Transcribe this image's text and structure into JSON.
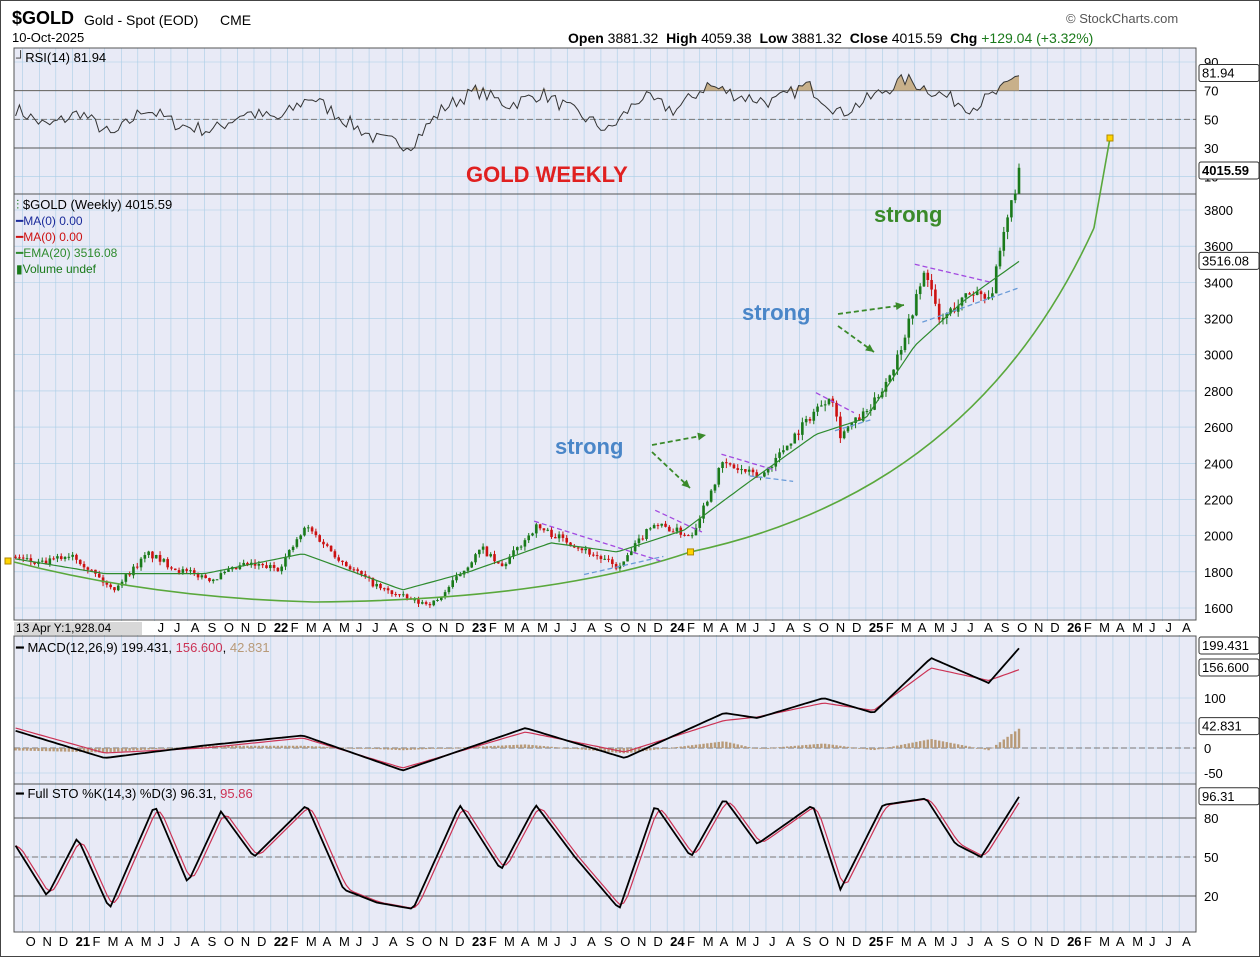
{
  "header": {
    "symbol": "$GOLD",
    "name": "Gold - Spot (EOD)",
    "exchange": "CME",
    "date": "10-Oct-2025",
    "brand": "StockCharts.com",
    "ohlc": {
      "open_label": "Open",
      "open": "3881.32",
      "high_label": "High",
      "high": "4059.38",
      "low_label": "Low",
      "low": "3881.32",
      "close_label": "Close",
      "close": "4015.59",
      "chg_label": "Chg",
      "chg": "+129.04 (+3.32%)"
    }
  },
  "colors": {
    "panel_bg": "#e8eaf6",
    "grid": "#a9cde6",
    "up": "#1a7a1a",
    "down": "#cc1111",
    "ema": "#2e8b2e",
    "curve": "#5aa83c",
    "magenta": "#a349e0",
    "trend_blue": "#6a9bd8",
    "strong_blue": "#4a86c8",
    "strong_green": "#3a8a2a",
    "title_red": "#e02020",
    "rsi_fill": "#c8b08a",
    "macd_hist": "#b89a78",
    "sig_red": "#cc3355"
  },
  "annotations": {
    "chart_title": "GOLD WEEKLY",
    "strong_1": "strong",
    "strong_2": "strong",
    "strong_3": "strong"
  },
  "chart_data": [
    {
      "type": "line",
      "title": "RSI(14) 81.94",
      "indicator": "RSI(14)",
      "value": 81.94,
      "value_label": "81.94",
      "ylim": [
        0,
        100
      ],
      "yticks": [
        10,
        30,
        50,
        70,
        90
      ],
      "reference_lines": [
        30,
        50,
        70
      ],
      "points": [
        [
          "2020-09-15",
          58
        ],
        [
          "2020-11-15",
          45
        ],
        [
          "2021-01-15",
          55
        ],
        [
          "2021-03-15",
          38
        ],
        [
          "2021-05-15",
          58
        ],
        [
          "2021-07-15",
          46
        ],
        [
          "2021-09-15",
          42
        ],
        [
          "2021-11-15",
          55
        ],
        [
          "2022-01-15",
          50
        ],
        [
          "2022-03-15",
          66
        ],
        [
          "2022-05-15",
          50
        ],
        [
          "2022-07-15",
          36
        ],
        [
          "2022-09-15",
          32
        ],
        [
          "2022-11-15",
          58
        ],
        [
          "2023-01-15",
          70
        ],
        [
          "2023-03-15",
          60
        ],
        [
          "2023-05-15",
          68
        ],
        [
          "2023-07-15",
          55
        ],
        [
          "2023-09-15",
          42
        ],
        [
          "2023-11-15",
          66
        ],
        [
          "2024-01-15",
          56
        ],
        [
          "2024-03-15",
          74
        ],
        [
          "2024-05-15",
          66
        ],
        [
          "2024-07-15",
          62
        ],
        [
          "2024-09-15",
          74
        ],
        [
          "2024-11-15",
          54
        ],
        [
          "2025-01-15",
          66
        ],
        [
          "2025-03-15",
          78
        ],
        [
          "2025-05-15",
          68
        ],
        [
          "2025-07-15",
          58
        ],
        [
          "2025-09-15",
          72
        ],
        [
          "2025-10-10",
          81.94
        ]
      ]
    },
    {
      "type": "candlestick",
      "title": "$GOLD (Weekly) 4015.59",
      "ylim": [
        1550,
        4110
      ],
      "yticks": [
        1600,
        1800,
        2000,
        2200,
        2400,
        2600,
        2800,
        3000,
        3200,
        3400,
        3600,
        3800
      ],
      "last_price_label": "4015.59",
      "ema_label": "3516.08",
      "legend": [
        {
          "name": "$GOLD (Weekly) 4015.59",
          "color": "#1a7a1a"
        },
        {
          "name": "MA(0) 0.00",
          "color": "#1a2a9a"
        },
        {
          "name": "MA(0) 0.00",
          "color": "#cc1111"
        },
        {
          "name": "EMA(20) 3516.08",
          "color": "#2e8b2e"
        },
        {
          "name": "Volume undef",
          "color": "#1a7a1a"
        }
      ],
      "price_path": [
        [
          "2020-09-01",
          1900
        ],
        [
          "2020-11-01",
          1840
        ],
        [
          "2021-01-01",
          1900
        ],
        [
          "2021-03-15",
          1700
        ],
        [
          "2021-05-20",
          1900
        ],
        [
          "2021-07-15",
          1810
        ],
        [
          "2021-09-15",
          1760
        ],
        [
          "2021-11-15",
          1840
        ],
        [
          "2022-01-15",
          1820
        ],
        [
          "2022-03-08",
          2050
        ],
        [
          "2022-05-15",
          1850
        ],
        [
          "2022-07-20",
          1710
        ],
        [
          "2022-09-28",
          1630
        ],
        [
          "2022-11-01",
          1630
        ],
        [
          "2023-01-25",
          1930
        ],
        [
          "2023-03-01",
          1820
        ],
        [
          "2023-05-04",
          2050
        ],
        [
          "2023-07-15",
          1950
        ],
        [
          "2023-10-05",
          1820
        ],
        [
          "2023-12-04",
          2070
        ],
        [
          "2024-02-14",
          2000
        ],
        [
          "2024-04-12",
          2400
        ],
        [
          "2024-06-20",
          2320
        ],
        [
          "2024-09-26",
          2680
        ],
        [
          "2024-10-30",
          2790
        ],
        [
          "2024-11-14",
          2560
        ],
        [
          "2025-01-10",
          2700
        ],
        [
          "2025-02-24",
          2950
        ],
        [
          "2025-04-22",
          3480
        ],
        [
          "2025-05-15",
          3180
        ],
        [
          "2025-07-15",
          3350
        ],
        [
          "2025-08-20",
          3330
        ],
        [
          "2025-09-20",
          3760
        ],
        [
          "2025-10-10",
          4015.59
        ]
      ],
      "ema_path": [
        [
          "2020-09-01",
          1880
        ],
        [
          "2021-03-01",
          1790
        ],
        [
          "2021-09-01",
          1790
        ],
        [
          "2022-03-01",
          1900
        ],
        [
          "2022-09-01",
          1700
        ],
        [
          "2023-01-01",
          1800
        ],
        [
          "2023-06-01",
          1960
        ],
        [
          "2023-10-01",
          1910
        ],
        [
          "2024-02-01",
          2030
        ],
        [
          "2024-06-01",
          2300
        ],
        [
          "2024-10-01",
          2560
        ],
        [
          "2025-01-01",
          2650
        ],
        [
          "2025-04-01",
          3050
        ],
        [
          "2025-07-01",
          3300
        ],
        [
          "2025-10-10",
          3516.08
        ]
      ],
      "annotation_points": [
        [
          "2021-04-13",
          1928.04
        ],
        [
          "2024-02-13",
          1910
        ],
        [
          "2026-02-25",
          3700
        ]
      ],
      "hover_label": "13 Apr Y:1,928.04"
    },
    {
      "type": "line",
      "title": "MACD(12,26,9) 199.431, 156.600, 42.831",
      "indicator": "MACD(12,26,9)",
      "values": {
        "macd": "199.431",
        "signal": "156.600",
        "histogram": "42.831"
      },
      "ylim": [
        -70,
        230
      ],
      "yticks": [
        -50,
        0,
        50,
        100
      ],
      "macd_path": [
        [
          "2020-09-01",
          40
        ],
        [
          "2021-03-01",
          -20
        ],
        [
          "2021-09-01",
          5
        ],
        [
          "2022-03-01",
          25
        ],
        [
          "2022-09-01",
          -45
        ],
        [
          "2023-04-15",
          40
        ],
        [
          "2023-10-15",
          -20
        ],
        [
          "2024-04-15",
          70
        ],
        [
          "2024-06-15",
          60
        ],
        [
          "2024-10-15",
          100
        ],
        [
          "2025-01-15",
          70
        ],
        [
          "2025-05-01",
          180
        ],
        [
          "2025-08-15",
          130
        ],
        [
          "2025-10-10",
          199.431
        ]
      ],
      "signal_path": [
        [
          "2020-09-01",
          45
        ],
        [
          "2021-03-01",
          -10
        ],
        [
          "2021-09-01",
          0
        ],
        [
          "2022-03-01",
          20
        ],
        [
          "2022-09-01",
          -40
        ],
        [
          "2023-04-15",
          32
        ],
        [
          "2023-10-15",
          -8
        ],
        [
          "2024-04-15",
          55
        ],
        [
          "2024-06-15",
          62
        ],
        [
          "2024-10-15",
          90
        ],
        [
          "2025-01-15",
          75
        ],
        [
          "2025-05-01",
          160
        ],
        [
          "2025-08-15",
          135
        ],
        [
          "2025-10-10",
          156.6
        ]
      ]
    },
    {
      "type": "line",
      "title": "Full STO %K(14,3) %D(3) 96.31, 95.86",
      "indicator": "Full STO %K(14,3) %D(3)",
      "values": {
        "k": "96.31",
        "d": "95.86"
      },
      "ylim": [
        0,
        105
      ],
      "yticks": [
        20,
        50,
        80
      ],
      "reference_lines": [
        20,
        50,
        80
      ],
      "k_path": [
        [
          "2020-09-01",
          70
        ],
        [
          "2020-11-15",
          20
        ],
        [
          "2021-01-10",
          65
        ],
        [
          "2021-03-10",
          10
        ],
        [
          "2021-06-01",
          90
        ],
        [
          "2021-08-01",
          30
        ],
        [
          "2021-10-01",
          85
        ],
        [
          "2021-12-01",
          50
        ],
        [
          "2022-03-08",
          90
        ],
        [
          "2022-05-15",
          25
        ],
        [
          "2022-07-15",
          15
        ],
        [
          "2022-09-20",
          10
        ],
        [
          "2022-12-15",
          90
        ],
        [
          "2023-03-01",
          40
        ],
        [
          "2023-05-04",
          90
        ],
        [
          "2023-07-15",
          50
        ],
        [
          "2023-10-05",
          10
        ],
        [
          "2023-12-10",
          90
        ],
        [
          "2024-02-14",
          50
        ],
        [
          "2024-04-15",
          95
        ],
        [
          "2024-06-15",
          60
        ],
        [
          "2024-09-25",
          90
        ],
        [
          "2024-11-15",
          25
        ],
        [
          "2025-02-01",
          90
        ],
        [
          "2025-04-22",
          95
        ],
        [
          "2025-06-15",
          60
        ],
        [
          "2025-08-01",
          50
        ],
        [
          "2025-10-10",
          96.31
        ]
      ]
    }
  ],
  "x_axis": {
    "labels_top": [
      "13 Apr Y:1,928.04",
      "J",
      "J",
      "A",
      "S",
      "O",
      "N",
      "D",
      "22",
      "F",
      "M",
      "A",
      "M",
      "J",
      "J",
      "A",
      "S",
      "O",
      "N",
      "D",
      "23",
      "F",
      "M",
      "A",
      "M",
      "J",
      "J",
      "A",
      "S",
      "O",
      "N",
      "D",
      "24",
      "F",
      "M",
      "A",
      "M",
      "J",
      "J",
      "A",
      "S",
      "O",
      "N",
      "D",
      "25",
      "F",
      "M",
      "A",
      "M",
      "J",
      "J",
      "A",
      "S",
      "O",
      "N",
      "D",
      "26",
      "F",
      "M",
      "A",
      "M",
      "J",
      "J",
      "A"
    ],
    "labels_bottom": [
      "O",
      "N",
      "D",
      "21",
      "F",
      "M",
      "A",
      "M",
      "J",
      "J",
      "A",
      "S",
      "O",
      "N",
      "D",
      "22",
      "F",
      "M",
      "A",
      "M",
      "J",
      "J",
      "A",
      "S",
      "O",
      "N",
      "D",
      "23",
      "F",
      "M",
      "A",
      "M",
      "J",
      "J",
      "A",
      "S",
      "O",
      "N",
      "D",
      "24",
      "F",
      "M",
      "A",
      "M",
      "J",
      "J",
      "A",
      "S",
      "O",
      "N",
      "D",
      "25",
      "F",
      "M",
      "A",
      "M",
      "J",
      "J",
      "A",
      "S",
      "O",
      "N",
      "D",
      "26",
      "F",
      "M",
      "A",
      "M",
      "J",
      "J",
      "A"
    ]
  }
}
